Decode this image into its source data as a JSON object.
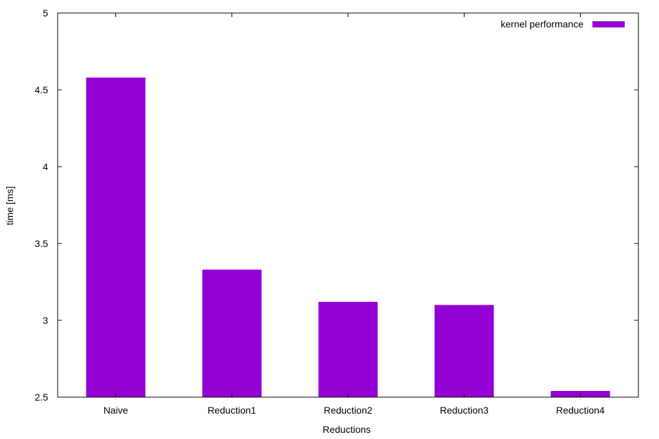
{
  "chart_data": {
    "type": "bar",
    "title": "",
    "xlabel": "Reductions",
    "ylabel": "time [ms]",
    "categories": [
      "Naive",
      "Reduction1",
      "Reduction2",
      "Reduction3",
      "Reduction4"
    ],
    "series": [
      {
        "name": "kernel performance",
        "color": "#9400D3",
        "values": [
          4.58,
          3.33,
          3.12,
          3.1,
          2.54
        ]
      }
    ],
    "ylim": [
      2.5,
      5
    ],
    "yticks": [
      "2.5",
      "3",
      "3.5",
      "4",
      "4.5",
      "5"
    ],
    "grid": false,
    "legend_position": "top-right"
  }
}
